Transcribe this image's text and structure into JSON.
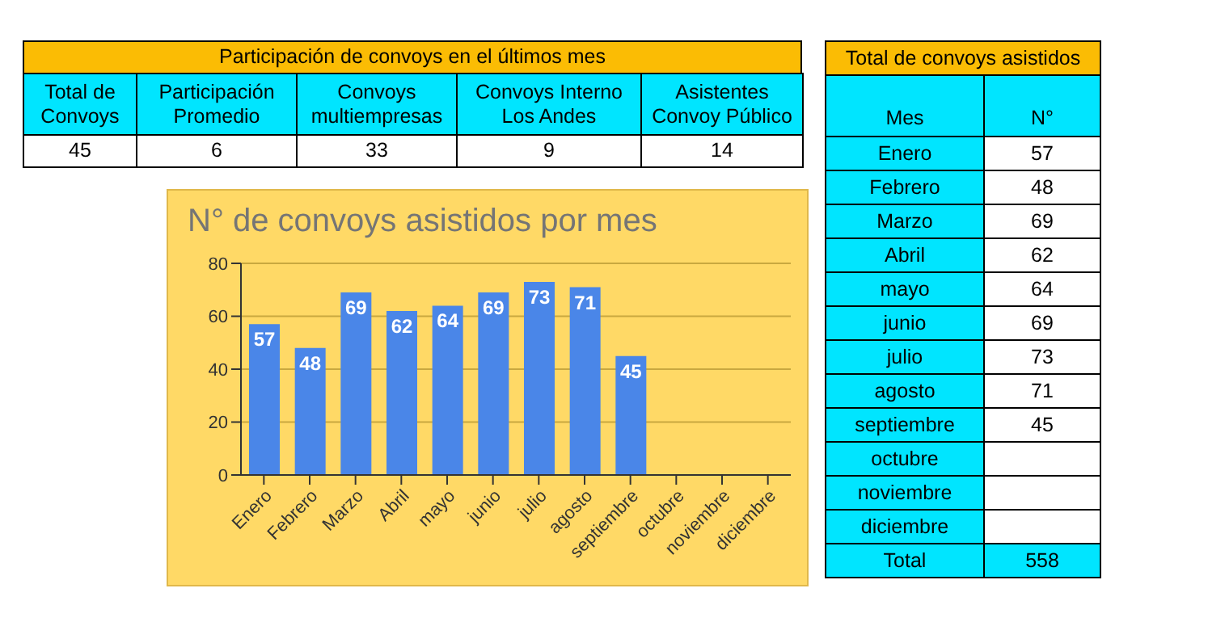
{
  "chart_data": [
    {
      "type": "other",
      "title": "Participación de convoys en el últimos mes",
      "categories": [
        "Total de Convoys",
        "Participación Promedio",
        "Convoys multiempresas",
        "Convoys Interno Los Andes",
        "Asistentes Convoy Público"
      ],
      "values": [
        45,
        6,
        33,
        9,
        14
      ],
      "data_labels": true
    },
    {
      "type": "bar",
      "title": "N° de convoys asistidos por mes",
      "categories": [
        "Enero",
        "Febrero",
        "Marzo",
        "Abril",
        "mayo",
        "junio",
        "julio",
        "agosto",
        "septiembre",
        "octubre",
        "noviembre",
        "diciembre"
      ],
      "values": [
        57,
        48,
        69,
        62,
        64,
        69,
        73,
        71,
        45,
        null,
        null,
        null
      ],
      "color": "#4a86e8",
      "ylim": [
        0,
        80
      ],
      "yticks": [
        0,
        20,
        40,
        60,
        80
      ],
      "grid": "y",
      "data_labels": true,
      "legend": false
    },
    {
      "type": "other",
      "title": "Total de convoys asistidos",
      "xlabel": "Mes",
      "ylabel": "N°",
      "categories": [
        "Enero",
        "Febrero",
        "Marzo",
        "Abril",
        "mayo",
        "junio",
        "julio",
        "agosto",
        "septiembre",
        "octubre",
        "noviembre",
        "diciembre",
        "Total"
      ],
      "values": [
        57,
        48,
        69,
        62,
        64,
        69,
        73,
        71,
        45,
        null,
        null,
        null,
        558
      ],
      "data_labels": true
    }
  ]
}
